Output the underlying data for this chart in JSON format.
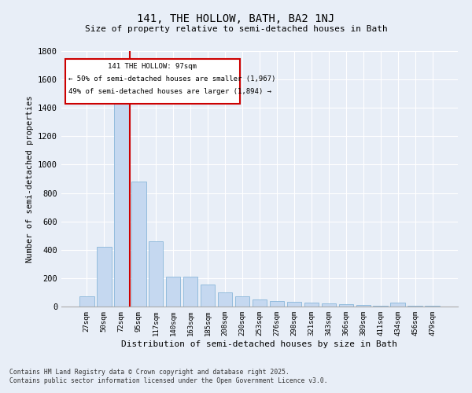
{
  "title": "141, THE HOLLOW, BATH, BA2 1NJ",
  "subtitle": "Size of property relative to semi-detached houses in Bath",
  "xlabel": "Distribution of semi-detached houses by size in Bath",
  "ylabel": "Number of semi-detached properties",
  "bar_color": "#c5d8f0",
  "bar_edge_color": "#7aadd4",
  "background_color": "#e8eef7",
  "grid_color": "#ffffff",
  "vline_color": "#cc0000",
  "vline_x_index": 3,
  "annotation_title": "141 THE HOLLOW: 97sqm",
  "annotation_line1": "← 50% of semi-detached houses are smaller (1,967)",
  "annotation_line2": "49% of semi-detached houses are larger (1,894) →",
  "annotation_box_color": "#cc0000",
  "footnote1": "Contains HM Land Registry data © Crown copyright and database right 2025.",
  "footnote2": "Contains public sector information licensed under the Open Government Licence v3.0.",
  "categories": [
    "27sqm",
    "50sqm",
    "72sqm",
    "95sqm",
    "117sqm",
    "140sqm",
    "163sqm",
    "185sqm",
    "208sqm",
    "230sqm",
    "253sqm",
    "276sqm",
    "298sqm",
    "321sqm",
    "343sqm",
    "366sqm",
    "389sqm",
    "411sqm",
    "434sqm",
    "456sqm",
    "479sqm"
  ],
  "values": [
    70,
    420,
    1440,
    880,
    460,
    210,
    210,
    155,
    100,
    70,
    50,
    40,
    35,
    25,
    20,
    15,
    10,
    8,
    30,
    8,
    4
  ],
  "ylim": [
    0,
    1800
  ],
  "yticks": [
    0,
    200,
    400,
    600,
    800,
    1000,
    1200,
    1400,
    1600,
    1800
  ]
}
